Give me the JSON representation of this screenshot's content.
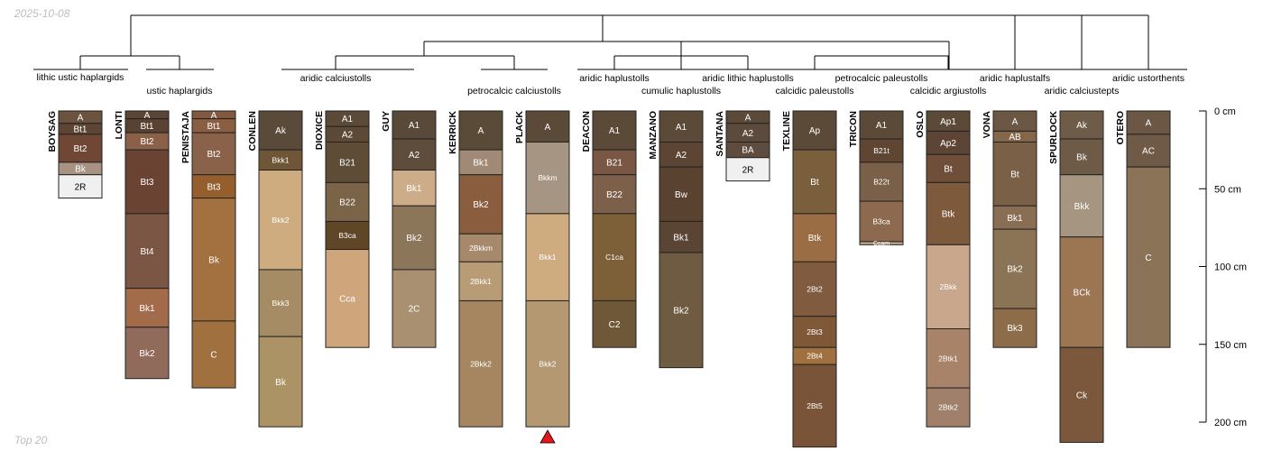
{
  "date_stamp": "2025-10-08",
  "footer_label": "Top 20",
  "depth_axis": {
    "max_cm": 200,
    "ticks": [
      {
        "value": 0,
        "label": "0 cm"
      },
      {
        "value": 50,
        "label": "50 cm"
      },
      {
        "value": 100,
        "label": "100 cm"
      },
      {
        "value": 150,
        "label": "150 cm"
      },
      {
        "value": 200,
        "label": "200 cm"
      }
    ]
  },
  "groups": [
    {
      "label": "lithic ustic haplargids",
      "members": [
        0
      ]
    },
    {
      "label": "ustic haplargids",
      "members": [
        1,
        2
      ]
    },
    {
      "label": "aridic calciustolls",
      "members": [
        3,
        4,
        5
      ]
    },
    {
      "label": "petrocalcic calciustolls",
      "members": [
        6,
        7
      ]
    },
    {
      "label": "aridic haplustolls",
      "members": [
        8
      ]
    },
    {
      "label": "cumulic haplustolls",
      "members": [
        9
      ]
    },
    {
      "label": "aridic lithic haplustolls",
      "members": [
        10
      ]
    },
    {
      "label": "calcidic paleustolls",
      "members": [
        11
      ]
    },
    {
      "label": "petrocalcic paleustolls",
      "members": [
        12
      ]
    },
    {
      "label": "calcidic argiustolls",
      "members": [
        13
      ]
    },
    {
      "label": "aridic haplustalfs",
      "members": [
        14
      ]
    },
    {
      "label": "aridic calciustepts",
      "members": [
        15
      ]
    },
    {
      "label": "aridic ustorthents",
      "members": [
        16
      ]
    }
  ],
  "profiles": [
    {
      "name": "BOYSAG",
      "horizons": [
        {
          "name": "A",
          "top": 0,
          "bottom": 8,
          "color": "#6b5340"
        },
        {
          "name": "Bt1",
          "top": 8,
          "bottom": 15,
          "color": "#5e4533"
        },
        {
          "name": "Bt2",
          "top": 15,
          "bottom": 33,
          "color": "#704634"
        },
        {
          "name": "Bk",
          "top": 33,
          "bottom": 41,
          "color": "#a89383"
        },
        {
          "name": "2R",
          "top": 41,
          "bottom": 56,
          "color": "#f0f0f0"
        }
      ]
    },
    {
      "name": "LONTI",
      "horizons": [
        {
          "name": "A",
          "top": 0,
          "bottom": 5,
          "color": "#5c4535"
        },
        {
          "name": "Bt1",
          "top": 5,
          "bottom": 14,
          "color": "#5a4232"
        },
        {
          "name": "Bt2",
          "top": 14,
          "bottom": 25,
          "color": "#8a6049"
        },
        {
          "name": "Bt3",
          "top": 25,
          "bottom": 66,
          "color": "#6a4332"
        },
        {
          "name": "Bt4",
          "top": 66,
          "bottom": 114,
          "color": "#7c5644"
        },
        {
          "name": "Bk1",
          "top": 114,
          "bottom": 139,
          "color": "#a26c4b"
        },
        {
          "name": "Bk2",
          "top": 139,
          "bottom": 172,
          "color": "#906b5c"
        }
      ]
    },
    {
      "name": "PENISTAJA",
      "horizons": [
        {
          "name": "A",
          "top": 0,
          "bottom": 5,
          "color": "#84583e"
        },
        {
          "name": "Bt1",
          "top": 5,
          "bottom": 14,
          "color": "#8a5e42"
        },
        {
          "name": "Bt2",
          "top": 14,
          "bottom": 41,
          "color": "#8a6149"
        },
        {
          "name": "Bt3",
          "top": 41,
          "bottom": 56,
          "color": "#955f2d"
        },
        {
          "name": "Bk",
          "top": 56,
          "bottom": 135,
          "color": "#a2713f"
        },
        {
          "name": "C",
          "top": 135,
          "bottom": 178,
          "color": "#a0713e"
        }
      ]
    },
    {
      "name": "CONLEN",
      "horizons": [
        {
          "name": "Ak",
          "top": 0,
          "bottom": 25,
          "color": "#5a4a3a"
        },
        {
          "name": "Bkk1",
          "top": 25,
          "bottom": 38,
          "color": "#6e5636"
        },
        {
          "name": "Bkk2",
          "top": 38,
          "bottom": 102,
          "color": "#cfac80"
        },
        {
          "name": "Bkk3",
          "top": 102,
          "bottom": 145,
          "color": "#a68c64"
        },
        {
          "name": "Bk",
          "top": 145,
          "bottom": 203,
          "color": "#ac9366"
        }
      ]
    },
    {
      "name": "DIOXICE",
      "horizons": [
        {
          "name": "A1",
          "top": 0,
          "bottom": 10,
          "color": "#5a4a37"
        },
        {
          "name": "A2",
          "top": 10,
          "bottom": 20,
          "color": "#5c4a36"
        },
        {
          "name": "B21",
          "top": 20,
          "bottom": 46,
          "color": "#5f4c37"
        },
        {
          "name": "B22",
          "top": 46,
          "bottom": 71,
          "color": "#7b6347"
        },
        {
          "name": "B3ca",
          "top": 71,
          "bottom": 89,
          "color": "#5e4627"
        },
        {
          "name": "Cca",
          "top": 89,
          "bottom": 152,
          "color": "#cfa57c"
        }
      ]
    },
    {
      "name": "GUY",
      "horizons": [
        {
          "name": "A1",
          "top": 0,
          "bottom": 18,
          "color": "#594939"
        },
        {
          "name": "A2",
          "top": 18,
          "bottom": 38,
          "color": "#5e4c3c"
        },
        {
          "name": "Bk1",
          "top": 38,
          "bottom": 61,
          "color": "#cdac8a"
        },
        {
          "name": "Bk2",
          "top": 61,
          "bottom": 102,
          "color": "#8c7659"
        },
        {
          "name": "2C",
          "top": 102,
          "bottom": 152,
          "color": "#a89070"
        }
      ]
    },
    {
      "name": "KERRICK",
      "horizons": [
        {
          "name": "A",
          "top": 0,
          "bottom": 25,
          "color": "#5a4a38"
        },
        {
          "name": "Bk1",
          "top": 25,
          "bottom": 41,
          "color": "#a08a75"
        },
        {
          "name": "Bk2",
          "top": 41,
          "bottom": 79,
          "color": "#8a5d3e"
        },
        {
          "name": "2Bkkm",
          "top": 79,
          "bottom": 97,
          "color": "#a6886a"
        },
        {
          "name": "2Bkk1",
          "top": 97,
          "bottom": 122,
          "color": "#b89c76"
        },
        {
          "name": "2Bkk2",
          "top": 122,
          "bottom": 203,
          "color": "#a68660"
        }
      ]
    },
    {
      "name": "PLACK",
      "horizons": [
        {
          "name": "A",
          "top": 0,
          "bottom": 20,
          "color": "#5c4a39"
        },
        {
          "name": "Bkkm",
          "top": 20,
          "bottom": 66,
          "color": "#a69582"
        },
        {
          "name": "Bkk1",
          "top": 66,
          "bottom": 122,
          "color": "#cfac80"
        },
        {
          "name": "Bkk2",
          "top": 122,
          "bottom": 203,
          "color": "#b39872"
        }
      ]
    },
    {
      "name": "DEACON",
      "horizons": [
        {
          "name": "A1",
          "top": 0,
          "bottom": 25,
          "color": "#5c4a39"
        },
        {
          "name": "B21",
          "top": 25,
          "bottom": 41,
          "color": "#7a5744"
        },
        {
          "name": "B22",
          "top": 41,
          "bottom": 66,
          "color": "#7d604a"
        },
        {
          "name": "C1ca",
          "top": 66,
          "bottom": 122,
          "color": "#7d6038"
        },
        {
          "name": "C2",
          "top": 122,
          "bottom": 152,
          "color": "#6f5838"
        }
      ]
    },
    {
      "name": "MANZANO",
      "horizons": [
        {
          "name": "A1",
          "top": 0,
          "bottom": 20,
          "color": "#5c4a39"
        },
        {
          "name": "A2",
          "top": 20,
          "bottom": 36,
          "color": "#5c4535"
        },
        {
          "name": "Bw",
          "top": 36,
          "bottom": 71,
          "color": "#5a4231"
        },
        {
          "name": "Bk1",
          "top": 71,
          "bottom": 91,
          "color": "#5a4434"
        },
        {
          "name": "Bk2",
          "top": 91,
          "bottom": 165,
          "color": "#6f5a42"
        }
      ]
    },
    {
      "name": "SANTANA",
      "horizons": [
        {
          "name": "A",
          "top": 0,
          "bottom": 8,
          "color": "#5c4a39"
        },
        {
          "name": "A2",
          "top": 8,
          "bottom": 20,
          "color": "#5c4a3c"
        },
        {
          "name": "BA",
          "top": 20,
          "bottom": 30,
          "color": "#5e4c3e"
        },
        {
          "name": "2R",
          "top": 30,
          "bottom": 45,
          "color": "#f0f0f0"
        }
      ]
    },
    {
      "name": "TEXLINE",
      "horizons": [
        {
          "name": "Ap",
          "top": 0,
          "bottom": 25,
          "color": "#5c4a39"
        },
        {
          "name": "Bt",
          "top": 25,
          "bottom": 66,
          "color": "#7b5e3c"
        },
        {
          "name": "Btk",
          "top": 66,
          "bottom": 97,
          "color": "#9b6d44"
        },
        {
          "name": "2Bt2",
          "top": 97,
          "bottom": 132,
          "color": "#815b3f"
        },
        {
          "name": "2Bt3",
          "top": 132,
          "bottom": 152,
          "color": "#7f5838"
        },
        {
          "name": "2Bt4",
          "top": 152,
          "bottom": 163,
          "color": "#a0703e"
        },
        {
          "name": "2Bt5",
          "top": 163,
          "bottom": 216,
          "color": "#7a5438"
        }
      ]
    },
    {
      "name": "TRICON",
      "horizons": [
        {
          "name": "A1",
          "top": 0,
          "bottom": 18,
          "color": "#5c4a39"
        },
        {
          "name": "B21t",
          "top": 18,
          "bottom": 33,
          "color": "#5e4633"
        },
        {
          "name": "B22t",
          "top": 33,
          "bottom": 58,
          "color": "#7a6048"
        },
        {
          "name": "B3ca",
          "top": 58,
          "bottom": 84,
          "color": "#8d6a4f"
        },
        {
          "name": "Ccam",
          "top": 84,
          "bottom": 86,
          "color": "#c2a586"
        }
      ]
    },
    {
      "name": "OSLO",
      "horizons": [
        {
          "name": "Ap1",
          "top": 0,
          "bottom": 13,
          "color": "#5c4a39"
        },
        {
          "name": "Ap2",
          "top": 13,
          "bottom": 28,
          "color": "#5c4535"
        },
        {
          "name": "Bt",
          "top": 28,
          "bottom": 46,
          "color": "#6f4f3a"
        },
        {
          "name": "Btk",
          "top": 46,
          "bottom": 86,
          "color": "#7e5a3d"
        },
        {
          "name": "2Bkk",
          "top": 86,
          "bottom": 140,
          "color": "#c8a78c"
        },
        {
          "name": "2Btk1",
          "top": 140,
          "bottom": 178,
          "color": "#a8836a"
        },
        {
          "name": "2Btk2",
          "top": 178,
          "bottom": 203,
          "color": "#a0806a"
        }
      ]
    },
    {
      "name": "VONA",
      "horizons": [
        {
          "name": "A",
          "top": 0,
          "bottom": 13,
          "color": "#6b5743"
        },
        {
          "name": "AB",
          "top": 13,
          "bottom": 20,
          "color": "#84674b"
        },
        {
          "name": "Bt",
          "top": 20,
          "bottom": 61,
          "color": "#7a6046"
        },
        {
          "name": "Bk1",
          "top": 61,
          "bottom": 76,
          "color": "#8a6e54"
        },
        {
          "name": "Bk2",
          "top": 76,
          "bottom": 127,
          "color": "#8b7356"
        },
        {
          "name": "Bk3",
          "top": 127,
          "bottom": 152,
          "color": "#8d6c4a"
        }
      ]
    },
    {
      "name": "SPURLOCK",
      "horizons": [
        {
          "name": "Ak",
          "top": 0,
          "bottom": 18,
          "color": "#6e5c48"
        },
        {
          "name": "Bk",
          "top": 18,
          "bottom": 41,
          "color": "#6e5b47"
        },
        {
          "name": "Bkk",
          "top": 41,
          "bottom": 81,
          "color": "#a69580"
        },
        {
          "name": "BCk",
          "top": 81,
          "bottom": 152,
          "color": "#9c7553"
        },
        {
          "name": "Ck",
          "top": 152,
          "bottom": 213,
          "color": "#7b573b"
        }
      ]
    },
    {
      "name": "OTERO",
      "horizons": [
        {
          "name": "A",
          "top": 0,
          "bottom": 15,
          "color": "#6b5743"
        },
        {
          "name": "AC",
          "top": 15,
          "bottom": 36,
          "color": "#6e5a46"
        },
        {
          "name": "C",
          "top": 36,
          "bottom": 152,
          "color": "#8a7357"
        }
      ]
    }
  ],
  "marked_profile": 7,
  "colors": {
    "line": "#000000",
    "marker": "#e8141b",
    "label_dark": "#ffffff",
    "label_light": "#000000"
  }
}
